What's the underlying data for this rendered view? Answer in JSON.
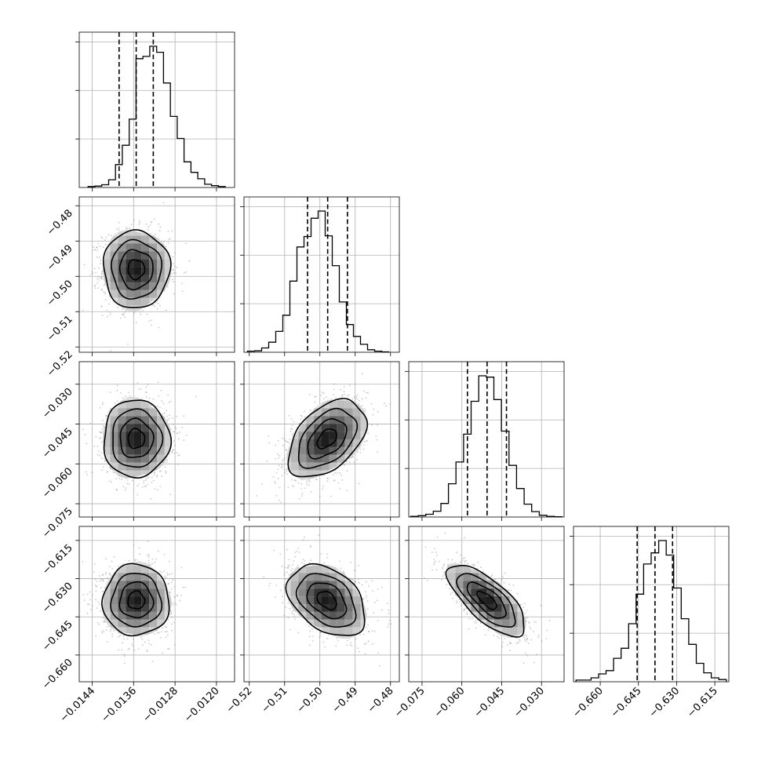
{
  "chart_data": {
    "type": "corner",
    "n_params": 4,
    "grid": true,
    "params": [
      {
        "ticks": [
          -0.0144,
          -0.0136,
          -0.0128,
          -0.012
        ],
        "tick_labels": [
          "−0.0144",
          "−0.0136",
          "−0.0128",
          "−0.0120"
        ],
        "range": [
          -0.01465,
          -0.01165
        ],
        "mean": -0.01355,
        "sd": 0.00032,
        "quantiles": [
          -0.01388,
          -0.01355,
          -0.01322
        ],
        "hist_edges_range": [
          -0.01448,
          -0.01183
        ],
        "hist_counts": [
          2,
          3,
          6,
          17,
          50,
          92,
          149,
          281,
          286,
          308,
          295,
          228,
          155,
          107,
          56,
          33,
          19,
          7,
          4,
          2
        ]
      },
      {
        "ticks": [
          -0.52,
          -0.51,
          -0.5,
          -0.49,
          -0.48
        ],
        "tick_labels": [
          "−0.52",
          "−0.51",
          "−0.50",
          "−0.49",
          "−0.48"
        ],
        "range": [
          -0.5215,
          -0.4775
        ],
        "mean": -0.498,
        "sd": 0.0055,
        "quantiles": [
          -0.5035,
          -0.4978,
          -0.4922
        ],
        "hist_edges_range": [
          -0.5205,
          -0.4805
        ],
        "hist_counts": [
          3,
          4,
          12,
          28,
          58,
          103,
          198,
          293,
          322,
          373,
          393,
          324,
          241,
          140,
          77,
          44,
          22,
          7,
          3,
          1
        ]
      },
      {
        "ticks": [
          -0.075,
          -0.06,
          -0.045,
          -0.03
        ],
        "tick_labels": [
          "−0.075",
          "−0.060",
          "−0.045",
          "−0.030"
        ],
        "range": [
          -0.08,
          -0.0215
        ],
        "mean": -0.0505,
        "sd": 0.0073,
        "quantiles": [
          -0.0579,
          -0.0505,
          -0.0432
        ],
        "hist_edges_range": [
          -0.0793,
          -0.0223
        ],
        "hist_counts": [
          2,
          4,
          8,
          17,
          40,
          98,
          162,
          244,
          341,
          416,
          412,
          346,
          253,
          152,
          84,
          38,
          16,
          5,
          2,
          1
        ]
      },
      {
        "ticks": [
          -0.66,
          -0.645,
          -0.63,
          -0.615
        ],
        "tick_labels": [
          "−0.660",
          "−0.645",
          "−0.630",
          "−0.615"
        ],
        "range": [
          -0.6705,
          -0.6095
        ],
        "mean": -0.6385,
        "sd": 0.007,
        "quantiles": [
          -0.6455,
          -0.6385,
          -0.6316
        ],
        "hist_edges_range": [
          -0.6695,
          -0.6105
        ],
        "hist_counts": [
          3,
          3,
          7,
          14,
          20,
          42,
          60,
          104,
          157,
          211,
          231,
          253,
          227,
          168,
          113,
          67,
          33,
          16,
          7,
          4
        ]
      }
    ],
    "correlations": [
      [
        1,
        0,
        0,
        0
      ],
      [
        0,
        1,
        0.45,
        -0.38
      ],
      [
        0,
        0.45,
        1,
        -0.72
      ],
      [
        0,
        -0.38,
        -0.72,
        1
      ]
    ]
  }
}
